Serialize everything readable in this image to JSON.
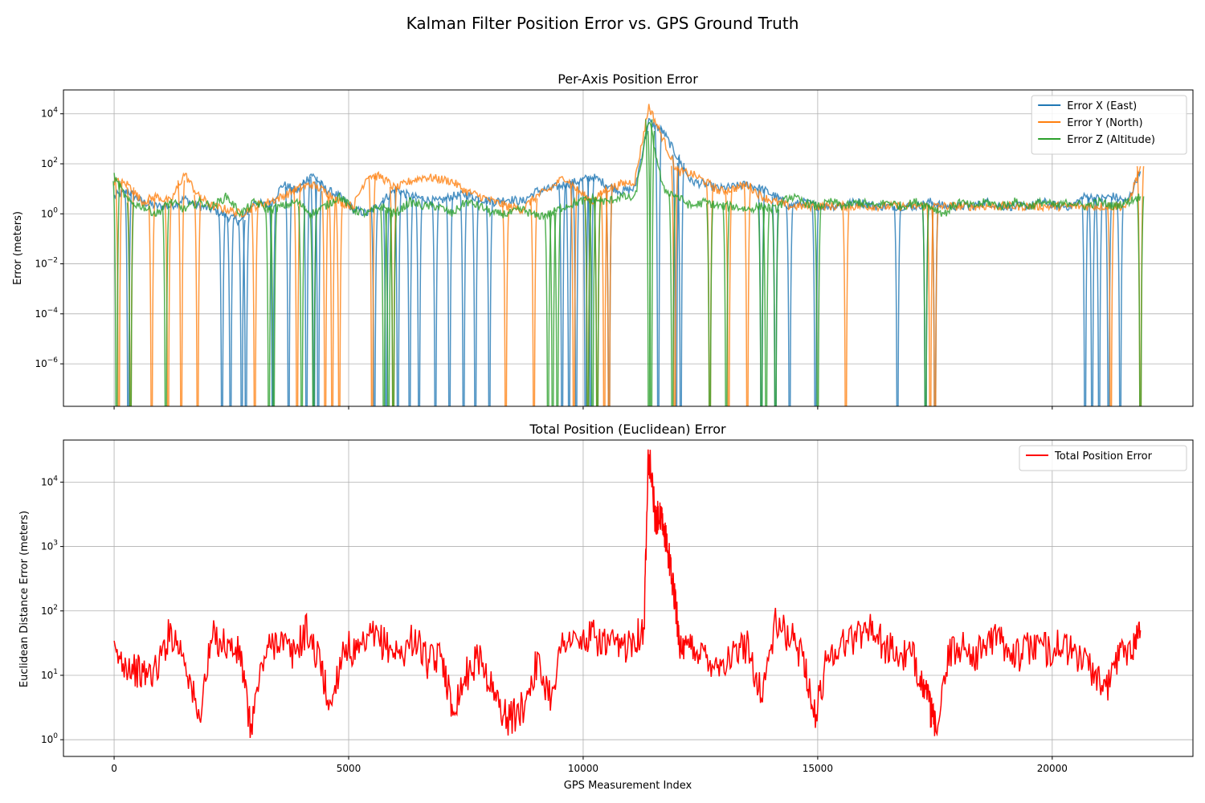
{
  "figure": {
    "suptitle": "Kalman Filter Position Error vs. GPS Ground Truth",
    "xlabel": "GPS Measurement Index"
  },
  "chart_data": [
    {
      "type": "line",
      "title": "Per-Axis Position Error",
      "ylabel": "Error (meters)",
      "yscale": "log",
      "xlim": [
        -1080,
        23000
      ],
      "ylim": [
        2e-08,
        90000
      ],
      "xticks": [
        0,
        5000,
        10000,
        15000,
        20000
      ],
      "xtick_labels_visible": false,
      "yticks": [
        {
          "value": 1e-06,
          "mant": "10",
          "exp": "−6"
        },
        {
          "value": 0.0001,
          "mant": "10",
          "exp": "−4"
        },
        {
          "value": 0.01,
          "mant": "10",
          "exp": "−2"
        },
        {
          "value": 1,
          "mant": "10",
          "exp": "0"
        },
        {
          "value": 100,
          "mant": "10",
          "exp": "2"
        },
        {
          "value": 10000,
          "mant": "10",
          "exp": "4"
        }
      ],
      "grid": true,
      "legend": "top-right",
      "series": [
        {
          "name": "Error X (East)",
          "color": "#1f77b4",
          "x": [
            0,
            300,
            600,
            900,
            1200,
            1500,
            1800,
            2100,
            2400,
            2700,
            3000,
            3300,
            3600,
            3900,
            4200,
            4500,
            4800,
            5100,
            5400,
            5700,
            6000,
            6300,
            6600,
            6900,
            7200,
            7500,
            7800,
            8100,
            8400,
            8700,
            9000,
            9300,
            9600,
            9900,
            10200,
            10500,
            10800,
            11100,
            11400,
            11700,
            12000,
            12300,
            12600,
            12900,
            13200,
            13500,
            13800,
            14100,
            14400,
            14700,
            15000,
            15300,
            15600,
            15900,
            16200,
            16500,
            16800,
            17100,
            17400,
            17700,
            18000,
            18300,
            18600,
            18900,
            19200,
            19500,
            19800,
            20100,
            20400,
            20700,
            21000,
            21300,
            21600,
            21880
          ],
          "y": [
            5,
            8,
            3,
            2,
            2,
            4,
            2,
            1.5,
            0.8,
            0.5,
            3,
            2,
            15,
            8,
            40,
            10,
            5,
            1.5,
            1,
            3,
            10,
            5,
            4,
            3,
            5,
            6,
            4,
            3,
            4,
            3,
            8,
            10,
            15,
            20,
            30,
            15,
            8,
            10,
            5000,
            2000,
            200,
            20,
            15,
            10,
            12,
            15,
            10,
            5,
            2,
            3,
            2,
            2,
            2.5,
            3,
            2,
            2,
            2,
            2,
            3,
            2,
            2,
            2,
            3,
            2,
            2,
            2,
            3,
            2,
            2,
            5,
            4,
            5,
            3,
            50
          ]
        },
        {
          "name": "Error Y (North)",
          "color": "#ff7f0e",
          "x": [
            0,
            300,
            600,
            900,
            1200,
            1500,
            1800,
            2100,
            2400,
            2700,
            3000,
            3300,
            3600,
            3900,
            4200,
            4500,
            4800,
            5100,
            5400,
            5700,
            6000,
            6300,
            6600,
            6900,
            7200,
            7500,
            7800,
            8100,
            8400,
            8700,
            9000,
            9300,
            9600,
            9900,
            10200,
            10500,
            10800,
            11100,
            11400,
            11700,
            12000,
            12300,
            12600,
            12900,
            13200,
            13500,
            13800,
            14100,
            14400,
            14700,
            15000,
            15300,
            15600,
            15900,
            16200,
            16500,
            16800,
            17100,
            17400,
            17700,
            18000,
            18300,
            18600,
            18900,
            19200,
            19500,
            19800,
            20100,
            20400,
            20700,
            21000,
            21300,
            21600,
            21880
          ],
          "y": [
            20,
            15,
            3,
            5,
            3,
            40,
            5,
            2,
            1.5,
            1,
            2,
            3,
            5,
            10,
            15,
            8,
            3,
            2,
            35,
            30,
            10,
            20,
            30,
            25,
            20,
            8,
            5,
            3,
            2,
            1.5,
            5,
            10,
            30,
            8,
            3,
            10,
            15,
            20,
            20000,
            1000,
            50,
            40,
            20,
            8,
            10,
            15,
            5,
            3,
            2,
            2,
            2,
            2,
            2,
            2,
            2,
            2,
            2,
            2,
            2,
            2,
            2,
            2,
            2,
            2,
            2,
            2,
            2,
            2,
            2,
            2,
            2,
            2,
            2,
            80
          ]
        },
        {
          "name": "Error Z (Altitude)",
          "color": "#2ca02c",
          "x": [
            0,
            300,
            600,
            900,
            1200,
            1500,
            1800,
            2100,
            2400,
            2700,
            3000,
            3300,
            3600,
            3900,
            4200,
            4500,
            4800,
            5100,
            5400,
            5700,
            6000,
            6300,
            6600,
            6900,
            7200,
            7500,
            7800,
            8100,
            8400,
            8700,
            9000,
            9300,
            9600,
            9900,
            10200,
            10500,
            10800,
            11100,
            11400,
            11700,
            12000,
            12300,
            12600,
            12900,
            13200,
            13500,
            13800,
            14100,
            14400,
            14700,
            15000,
            15300,
            15600,
            15900,
            16200,
            16500,
            16800,
            17100,
            17400,
            17700,
            18000,
            18300,
            18600,
            18900,
            19200,
            19500,
            19800,
            20100,
            20400,
            20700,
            21000,
            21300,
            21600,
            21880
          ],
          "y": [
            30,
            3,
            2,
            1,
            3,
            1.5,
            3,
            2,
            5,
            1,
            3,
            1.5,
            2,
            3,
            1,
            2,
            5,
            1.5,
            1,
            2,
            1,
            3,
            2,
            2,
            1,
            3,
            2,
            1,
            1,
            1.5,
            0.8,
            1,
            2,
            3,
            4,
            3,
            5,
            4,
            6000,
            10,
            5,
            2,
            3,
            2,
            2,
            1.5,
            2,
            1.5,
            5,
            3,
            2,
            3,
            2,
            3,
            2,
            3,
            2,
            3,
            2,
            1,
            3,
            2,
            3,
            2,
            3,
            2,
            3,
            2,
            3,
            2,
            3,
            2,
            3,
            5
          ]
        }
      ],
      "dropouts": [
        {
          "series": 0,
          "x": [
            300,
            2300,
            2480,
            2720,
            2810,
            3380,
            3720,
            4100,
            4260,
            4350,
            5550,
            5800,
            6050,
            6300,
            6500,
            6850,
            7150,
            7450,
            7700,
            8000,
            9550,
            9700,
            9850,
            10050,
            10160,
            10550,
            11600,
            11980,
            12080,
            13800,
            14100,
            14400,
            14950,
            16700,
            17300,
            17500,
            20700,
            20850,
            21000,
            21200,
            21450
          ]
        },
        {
          "series": 1,
          "x": [
            100,
            350,
            800,
            1150,
            1430,
            1780,
            3000,
            3900,
            4500,
            4650,
            4800,
            5500,
            5950,
            8350,
            8950,
            9800,
            10100,
            10300,
            10450,
            10550,
            11950,
            12700,
            13100,
            13500,
            15600,
            17400,
            17500,
            21250,
            21880
          ]
        },
        {
          "series": 2,
          "x": [
            50,
            350,
            1100,
            3300,
            3400,
            4000,
            4250,
            5750,
            5850,
            5950,
            9250,
            9350,
            9450,
            10100,
            10200,
            10300,
            11400,
            11450,
            11900,
            12700,
            13050,
            13800,
            13900,
            14100,
            15000,
            17300,
            21880
          ]
        }
      ]
    },
    {
      "type": "line",
      "title": "Total Position (Euclidean) Error",
      "xlabel": "GPS Measurement Index",
      "ylabel": "Euclidean Distance Error (meters)",
      "yscale": "log",
      "xlim": [
        -1080,
        23000
      ],
      "ylim": [
        0.55,
        45000
      ],
      "xticks": [
        {
          "value": 0,
          "label": "0"
        },
        {
          "value": 5000,
          "label": "5000"
        },
        {
          "value": 10000,
          "label": "10000"
        },
        {
          "value": 15000,
          "label": "15000"
        },
        {
          "value": 20000,
          "label": "20000"
        }
      ],
      "yticks": [
        {
          "value": 1,
          "mant": "10",
          "exp": "0"
        },
        {
          "value": 10,
          "mant": "10",
          "exp": "1"
        },
        {
          "value": 100,
          "mant": "10",
          "exp": "2"
        },
        {
          "value": 1000,
          "mant": "10",
          "exp": "3"
        },
        {
          "value": 10000,
          "mant": "10",
          "exp": "4"
        }
      ],
      "grid": true,
      "legend": "top-right",
      "series": [
        {
          "name": "Total Position Error",
          "color": "#ff0000",
          "x": [
            0,
            300,
            600,
            900,
            1200,
            1500,
            1800,
            2100,
            2400,
            2700,
            2900,
            3200,
            3500,
            3800,
            4100,
            4400,
            4600,
            4900,
            5200,
            5500,
            5800,
            6100,
            6400,
            6700,
            7000,
            7200,
            7500,
            7800,
            8100,
            8400,
            8700,
            9000,
            9300,
            9600,
            9900,
            10200,
            10500,
            10800,
            11100,
            11300,
            11380,
            11450,
            11550,
            11600,
            11700,
            11800,
            11900,
            12000,
            12100,
            12300,
            12600,
            12900,
            13200,
            13500,
            13800,
            14100,
            14400,
            14700,
            14950,
            15200,
            15500,
            15800,
            16100,
            16400,
            16700,
            17000,
            17200,
            17400,
            17500,
            17800,
            18100,
            18400,
            18700,
            19000,
            19300,
            19600,
            19900,
            20200,
            20500,
            20800,
            21100,
            21400,
            21700,
            21880
          ],
          "y": [
            20,
            15,
            10,
            12,
            50,
            20,
            2,
            40,
            30,
            20,
            1.5,
            20,
            40,
            20,
            50,
            15,
            3,
            30,
            20,
            40,
            30,
            20,
            40,
            15,
            20,
            3,
            10,
            20,
            5,
            2,
            3,
            15,
            5,
            40,
            30,
            40,
            30,
            25,
            40,
            50,
            25000,
            15000,
            2000,
            3000,
            2000,
            1000,
            300,
            80,
            20,
            30,
            20,
            15,
            20,
            30,
            5,
            60,
            40,
            20,
            2,
            20,
            30,
            40,
            60,
            30,
            20,
            20,
            10,
            3,
            1.5,
            20,
            30,
            20,
            40,
            30,
            20,
            30,
            25,
            30,
            20,
            15,
            5,
            20,
            30,
            50
          ]
        }
      ]
    }
  ]
}
